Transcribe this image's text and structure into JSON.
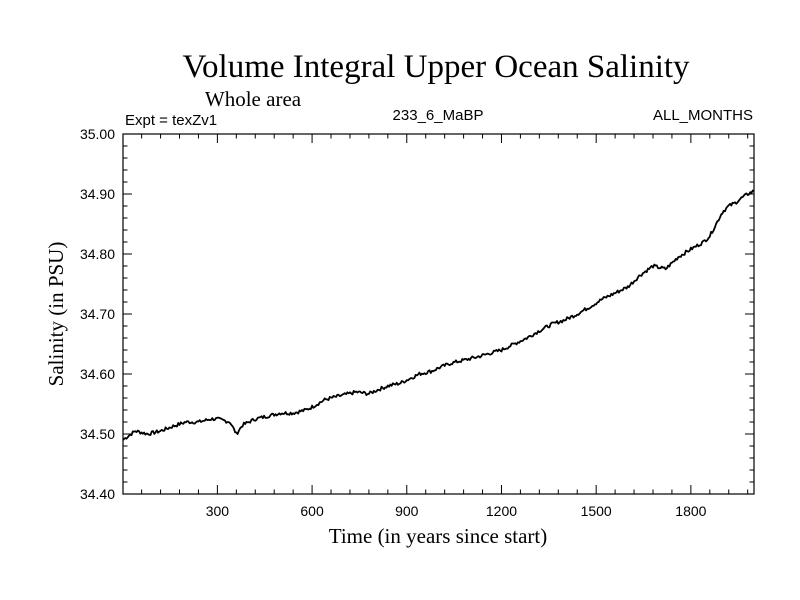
{
  "chart_data": {
    "type": "line",
    "title": "Volume Integral Upper Ocean Salinity",
    "subtitle": "Whole area",
    "annotations": {
      "left": "Expt = texZv1",
      "center": "233_6_MaBP",
      "right": "ALL_MONTHS"
    },
    "xlabel": "Time (in years since start)",
    "ylabel": "Salinity (in PSU)",
    "xlim": [
      1,
      2000
    ],
    "ylim": [
      34.4,
      35.0
    ],
    "xticks": [
      300,
      600,
      900,
      1200,
      1500,
      1800
    ],
    "xtick_labels": [
      "300",
      "600",
      "900",
      "1200",
      "1500",
      "1800"
    ],
    "yticks": [
      34.4,
      34.5,
      34.6,
      34.7,
      34.8,
      34.9,
      35.0
    ],
    "ytick_labels": [
      "34.40",
      "34.50",
      "34.60",
      "34.70",
      "34.80",
      "34.90",
      "35.00"
    ],
    "series": [
      {
        "name": "Salinity",
        "color": "#000000",
        "x": [
          0,
          40,
          80,
          120,
          160,
          200,
          240,
          280,
          300,
          340,
          360,
          380,
          420,
          460,
          500,
          540,
          580,
          600,
          640,
          660,
          700,
          740,
          780,
          800,
          840,
          880,
          900,
          940,
          980,
          1000,
          1040,
          1080,
          1120,
          1160,
          1200,
          1240,
          1280,
          1320,
          1360,
          1400,
          1440,
          1480,
          1520,
          1560,
          1600,
          1640,
          1680,
          1720,
          1760,
          1800,
          1840,
          1860,
          1880,
          1900,
          1920,
          1940,
          1960,
          1980,
          2000
        ],
        "y": [
          34.49,
          34.505,
          34.5,
          34.505,
          34.513,
          34.52,
          34.52,
          34.525,
          34.525,
          34.52,
          34.5,
          34.515,
          34.525,
          34.53,
          34.535,
          34.535,
          34.54,
          34.545,
          34.557,
          34.56,
          34.565,
          34.57,
          34.567,
          34.572,
          34.58,
          34.585,
          34.59,
          34.6,
          34.605,
          34.61,
          34.618,
          34.623,
          34.628,
          34.634,
          34.64,
          34.65,
          34.66,
          34.672,
          34.683,
          34.69,
          34.7,
          34.712,
          34.725,
          34.735,
          34.745,
          34.765,
          34.78,
          34.775,
          34.795,
          34.808,
          34.82,
          34.83,
          34.85,
          34.87,
          34.88,
          34.885,
          34.893,
          34.9,
          34.905
        ]
      }
    ]
  }
}
